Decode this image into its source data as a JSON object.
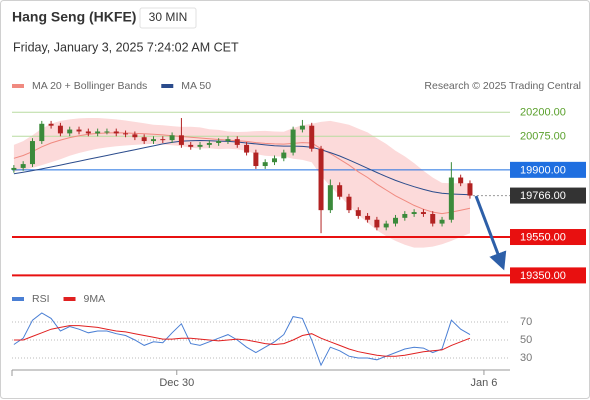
{
  "chart_data": [
    {
      "type": "candlestick",
      "title": "Hang Seng (HKFE)",
      "timeframe": "30 MIN",
      "subtitle": "Friday, January 3, 2025 7:24:02 AM CET",
      "source": "Research © 2025 Trading Central",
      "up_color": "#3b8a3b",
      "down_color": "#b22222",
      "open": [
        19900,
        19910,
        19930,
        20050,
        20140,
        20130,
        20090,
        20110,
        20100,
        20090,
        20100,
        20100,
        20090,
        20085,
        20070,
        20050,
        20060,
        20055,
        20080,
        20030,
        20020,
        20030,
        20040,
        20050,
        20060,
        20030,
        19990,
        19920,
        19940,
        19960,
        19990,
        20110,
        20130,
        20010,
        19690,
        19820,
        19760,
        19690,
        19660,
        19640,
        19600,
        19620,
        19650,
        19670,
        19680,
        19670,
        19620,
        19640,
        19860,
        19830
      ],
      "high": [
        19925,
        19945,
        20065,
        20155,
        20155,
        20145,
        20125,
        20125,
        20115,
        20115,
        20115,
        20115,
        20105,
        20100,
        20085,
        20075,
        20075,
        20095,
        20170,
        20045,
        20045,
        20055,
        20065,
        20075,
        20075,
        20045,
        20005,
        19955,
        19975,
        20005,
        20125,
        20160,
        20145,
        20025,
        19850,
        19835,
        19775,
        19705,
        19675,
        19655,
        19635,
        19665,
        19685,
        19695,
        19695,
        19685,
        19655,
        19940,
        19875,
        19845
      ],
      "low": [
        19885,
        19895,
        19915,
        20035,
        20115,
        20075,
        20075,
        20085,
        20075,
        20075,
        20085,
        20075,
        20070,
        20055,
        20035,
        20035,
        20040,
        20040,
        20015,
        20005,
        20005,
        20015,
        20025,
        20035,
        20015,
        19975,
        19905,
        19905,
        19925,
        19945,
        19975,
        20095,
        19995,
        19570,
        19675,
        19745,
        19675,
        19645,
        19625,
        19585,
        19585,
        19605,
        19635,
        19655,
        19655,
        19605,
        19605,
        19625,
        19815,
        19750
      ],
      "close": [
        19910,
        19930,
        20050,
        20140,
        20130,
        20090,
        20110,
        20100,
        20090,
        20100,
        20100,
        20090,
        20085,
        20070,
        20050,
        20060,
        20055,
        20080,
        20030,
        20020,
        20030,
        20040,
        20050,
        20060,
        20030,
        19990,
        19920,
        19940,
        19960,
        19990,
        20110,
        20130,
        20010,
        19690,
        19820,
        19760,
        19690,
        19660,
        19640,
        19600,
        19620,
        19650,
        19670,
        19680,
        19670,
        19620,
        19640,
        19860,
        19830,
        19766
      ],
      "series": [
        {
          "name": "MA 20 + Bollinger Bands",
          "color": "#f08a80",
          "band_color": "#fbd3d3",
          "values": [
            19960,
            19975,
            19995,
            20020,
            20040,
            20055,
            20068,
            20078,
            20085,
            20090,
            20092,
            20093,
            20092,
            20090,
            20088,
            20085,
            20082,
            20078,
            20074,
            20070,
            20066,
            20062,
            20058,
            20055,
            20052,
            20048,
            20042,
            20038,
            20035,
            20034,
            20038,
            20042,
            20040,
            20010,
            19985,
            19955,
            19925,
            19890,
            19860,
            19825,
            19795,
            19765,
            19740,
            19715,
            19695,
            19680,
            19672,
            19680,
            19690,
            19700
          ],
          "upper": [
            20030,
            20050,
            20080,
            20115,
            20140,
            20155,
            20163,
            20168,
            20170,
            20170,
            20167,
            20163,
            20157,
            20150,
            20143,
            20135,
            20132,
            20128,
            20124,
            20125,
            20121,
            20112,
            20108,
            20100,
            20097,
            20098,
            20102,
            20103,
            20100,
            20099,
            20118,
            20132,
            20140,
            20150,
            20155,
            20145,
            20135,
            20115,
            20095,
            20065,
            20035,
            20000,
            19970,
            19935,
            19895,
            19860,
            19832,
            19830,
            19830,
            19830
          ],
          "lower": [
            19890,
            19900,
            19910,
            19925,
            19940,
            19955,
            19973,
            19988,
            20000,
            20010,
            20017,
            20023,
            20027,
            20030,
            20033,
            20035,
            20032,
            20028,
            20024,
            20015,
            20011,
            20012,
            20008,
            20010,
            20007,
            19998,
            19982,
            19973,
            19970,
            19969,
            19958,
            19952,
            19940,
            19870,
            19815,
            19765,
            19715,
            19665,
            19625,
            19585,
            19555,
            19530,
            19510,
            19495,
            19495,
            19500,
            19512,
            19530,
            19550,
            19570
          ]
        },
        {
          "name": "MA 50",
          "color": "#2b4c8c",
          "values": [
            19880,
            19888,
            19896,
            19905,
            19915,
            19925,
            19935,
            19945,
            19955,
            19965,
            19975,
            19985,
            19995,
            20005,
            20015,
            20025,
            20035,
            20043,
            20050,
            20052,
            20053,
            20052,
            20050,
            20048,
            20045,
            20040,
            20035,
            20030,
            20026,
            20024,
            20024,
            20022,
            20018,
            20005,
            19990,
            19972,
            19952,
            19930,
            19908,
            19886,
            19865,
            19845,
            19828,
            19812,
            19798,
            19786,
            19778,
            19774,
            19772,
            19770
          ]
        }
      ],
      "levels": [
        {
          "value": 20200,
          "label": "20200.00",
          "color": "#5aa02c",
          "line_color": "#b8dca0",
          "line_style": "thin",
          "boxed": false
        },
        {
          "value": 20075,
          "label": "20075.00",
          "color": "#5aa02c",
          "line_color": "#b8dca0",
          "line_style": "thin",
          "boxed": false
        },
        {
          "value": 19900,
          "label": "19900.00",
          "color": "#1f6fe0",
          "line_color": "#1f6fe0",
          "line_style": "thin",
          "boxed": true
        },
        {
          "value": 19766,
          "label": "19766.00",
          "color": "#333333",
          "line_color": "#999999",
          "line_style": "dotted",
          "boxed": true
        },
        {
          "value": 19550,
          "label": "19550.00",
          "color": "#e81010",
          "line_color": "#e81010",
          "line_style": "thick",
          "boxed": true
        },
        {
          "value": 19350,
          "label": "19350.00",
          "color": "#e81010",
          "line_color": "#e81010",
          "line_style": "thick",
          "boxed": true
        }
      ],
      "ylim": [
        19300,
        20290
      ],
      "xlim": [
        -0.2,
        53.3
      ],
      "xticks": [
        {
          "value": 17.5,
          "label": "Dec 30"
        },
        {
          "value": 50.5,
          "label": "Jan 6"
        }
      ]
    },
    {
      "type": "line",
      "series": [
        {
          "name": "RSI",
          "color": "#4a7fd4",
          "values": [
            45,
            52,
            72,
            80,
            74,
            60,
            65,
            62,
            58,
            60,
            60,
            57,
            55,
            50,
            44,
            48,
            47,
            58,
            68,
            46,
            44,
            48,
            52,
            56,
            50,
            42,
            36,
            42,
            48,
            56,
            76,
            74,
            50,
            22,
            42,
            38,
            32,
            30,
            30,
            28,
            32,
            36,
            40,
            42,
            41,
            36,
            40,
            72,
            62,
            56
          ]
        },
        {
          "name": "9MA",
          "color": "#e02020",
          "values": [
            50,
            50,
            54,
            58,
            62,
            64,
            66,
            66,
            65,
            64,
            62,
            60,
            59,
            57,
            55,
            53,
            51,
            51,
            52,
            52,
            51,
            50,
            49,
            50,
            51,
            50,
            48,
            46,
            45,
            46,
            50,
            55,
            57,
            52,
            48,
            44,
            40,
            37,
            35,
            33,
            32,
            32,
            33,
            35,
            37,
            38,
            39,
            44,
            48,
            52
          ]
        }
      ],
      "ylim": [
        15,
        85
      ],
      "yticks": [
        70,
        50,
        30
      ],
      "grid": true
    }
  ]
}
